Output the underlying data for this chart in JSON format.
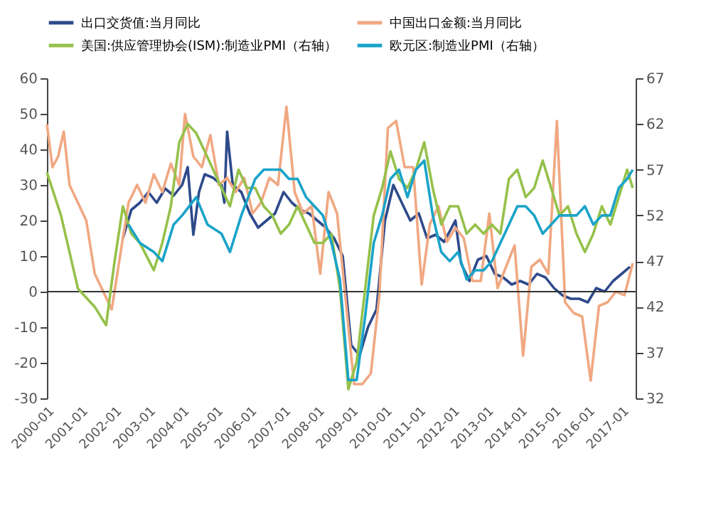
{
  "chart_data": {
    "type": "line",
    "xlim": [
      "2000-01",
      "2017-06"
    ],
    "xticks": [
      "2000-01",
      "2001-01",
      "2002-01",
      "2003-01",
      "2004-01",
      "2005-01",
      "2006-01",
      "2007-01",
      "2008-01",
      "2009-01",
      "2010-01",
      "2011-01",
      "2012-01",
      "2013-01",
      "2014-01",
      "2015-01",
      "2016-01",
      "2017-01"
    ],
    "ylim": [
      -30,
      60
    ],
    "yticks": [
      -30,
      -20,
      -10,
      0,
      10,
      20,
      30,
      40,
      50,
      60
    ],
    "y2lim": [
      32,
      67
    ],
    "y2ticks": [
      32,
      37,
      42,
      47,
      52,
      57,
      62,
      67
    ],
    "legend": "top",
    "ref_lines": [
      {
        "axis": "y",
        "value": 0
      }
    ],
    "series": [
      {
        "name": "出口交货值:当月同比",
        "color": "#2e4a8b",
        "x": [
          "2002-04",
          "2002-07",
          "2002-10",
          "2003-01",
          "2003-04",
          "2003-07",
          "2003-10",
          "2004-01",
          "2004-03",
          "2004-05",
          "2004-07",
          "2004-09",
          "2004-12",
          "2005-03",
          "2005-04",
          "2005-05",
          "2005-07",
          "2005-10",
          "2006-01",
          "2006-04",
          "2006-07",
          "2006-10",
          "2007-01",
          "2007-04",
          "2007-07",
          "2007-10",
          "2008-01",
          "2008-04",
          "2008-07",
          "2008-10",
          "2009-01",
          "2009-04",
          "2009-07",
          "2009-10",
          "2010-01",
          "2010-04",
          "2010-07",
          "2010-10",
          "2011-01",
          "2011-04",
          "2011-07",
          "2011-10",
          "2012-02",
          "2012-04",
          "2012-07",
          "2012-10",
          "2013-01",
          "2013-04",
          "2013-07",
          "2013-10",
          "2014-01",
          "2014-04",
          "2014-07",
          "2014-10",
          "2015-01",
          "2015-04",
          "2015-07",
          "2015-10",
          "2016-01",
          "2016-04",
          "2016-07",
          "2016-10",
          "2017-01",
          "2017-04"
        ],
        "values": [
          15,
          23,
          25,
          28,
          25,
          29,
          27,
          30,
          35,
          16,
          28,
          33,
          32,
          30,
          25,
          45,
          30,
          28,
          22,
          18,
          20,
          22,
          28,
          25,
          23,
          22,
          20,
          18,
          15,
          10,
          -15,
          -18,
          -10,
          -5,
          20,
          30,
          25,
          20,
          22,
          15,
          16,
          14,
          20,
          8,
          3,
          9,
          10,
          5,
          4,
          2,
          3,
          2,
          5,
          4,
          1,
          -1,
          -2,
          -2,
          -3,
          1,
          0,
          3,
          5,
          7
        ]
      },
      {
        "name": "中国出口金额:当月同比",
        "color": "#f0a882",
        "x": [
          "2000-01",
          "2000-03",
          "2000-05",
          "2000-07",
          "2000-09",
          "2000-12",
          "2001-03",
          "2001-06",
          "2001-09",
          "2001-12",
          "2002-03",
          "2002-06",
          "2002-09",
          "2002-12",
          "2003-03",
          "2003-06",
          "2003-09",
          "2003-12",
          "2004-02",
          "2004-05",
          "2004-08",
          "2004-11",
          "2005-02",
          "2005-05",
          "2005-08",
          "2005-11",
          "2006-02",
          "2006-05",
          "2006-08",
          "2006-11",
          "2007-02",
          "2007-05",
          "2007-08",
          "2007-11",
          "2008-02",
          "2008-05",
          "2008-08",
          "2008-11",
          "2009-02",
          "2009-05",
          "2009-08",
          "2009-11",
          "2010-02",
          "2010-05",
          "2010-08",
          "2010-11",
          "2011-02",
          "2011-05",
          "2011-08",
          "2011-11",
          "2012-02",
          "2012-05",
          "2012-08",
          "2012-11",
          "2013-02",
          "2013-05",
          "2013-08",
          "2013-11",
          "2014-02",
          "2014-05",
          "2014-08",
          "2014-11",
          "2015-02",
          "2015-05",
          "2015-08",
          "2015-11",
          "2016-02",
          "2016-05",
          "2016-08",
          "2016-11",
          "2017-02",
          "2017-05"
        ],
        "values": [
          47,
          35,
          38,
          45,
          30,
          25,
          20,
          5,
          0,
          -5,
          10,
          25,
          30,
          25,
          33,
          28,
          36,
          30,
          50,
          38,
          35,
          44,
          30,
          32,
          28,
          32,
          22,
          25,
          32,
          30,
          52,
          28,
          22,
          24,
          5,
          28,
          22,
          -2,
          -26,
          -26,
          -23,
          -1,
          46,
          48,
          35,
          35,
          2,
          19,
          24,
          14,
          18,
          15,
          3,
          3,
          22,
          1,
          7,
          13,
          -18,
          7,
          9,
          5,
          48,
          -3,
          -6,
          -7,
          -25,
          -4,
          -3,
          0,
          -1,
          8
        ]
      },
      {
        "name": "美国:供应管理协会(ISM):制造业PMI（右轴）",
        "color": "#95c14a",
        "axis": "y2",
        "x": [
          "2000-01",
          "2000-06",
          "2000-12",
          "2001-06",
          "2001-10",
          "2002-01",
          "2002-04",
          "2002-07",
          "2002-10",
          "2003-03",
          "2003-06",
          "2003-09",
          "2003-12",
          "2004-03",
          "2004-06",
          "2004-09",
          "2004-12",
          "2005-03",
          "2005-06",
          "2005-09",
          "2005-12",
          "2006-03",
          "2006-06",
          "2006-09",
          "2006-12",
          "2007-03",
          "2007-06",
          "2007-09",
          "2007-12",
          "2008-03",
          "2008-06",
          "2008-09",
          "2008-12",
          "2009-03",
          "2009-06",
          "2009-09",
          "2009-12",
          "2010-03",
          "2010-06",
          "2010-09",
          "2010-12",
          "2011-03",
          "2011-06",
          "2011-09",
          "2011-12",
          "2012-03",
          "2012-06",
          "2012-09",
          "2012-12",
          "2013-03",
          "2013-06",
          "2013-09",
          "2013-12",
          "2014-03",
          "2014-06",
          "2014-09",
          "2014-12",
          "2015-03",
          "2015-06",
          "2015-09",
          "2015-12",
          "2016-03",
          "2016-06",
          "2016-09",
          "2016-12",
          "2017-03",
          "2017-05"
        ],
        "values": [
          56.7,
          52,
          44,
          42,
          40,
          47,
          53,
          50,
          49,
          46,
          49,
          53,
          60,
          62,
          61,
          59,
          57,
          55,
          53,
          57,
          55,
          55,
          53,
          52,
          50,
          51,
          53,
          51,
          49,
          49,
          50,
          44,
          33,
          36,
          44,
          52,
          55,
          59,
          56,
          55,
          57,
          60,
          55,
          51,
          53,
          53,
          50,
          51,
          50,
          51,
          50,
          56,
          57,
          54,
          55,
          58,
          55,
          52,
          53,
          50,
          48,
          50,
          53,
          51,
          54,
          57,
          55
        ]
      },
      {
        "name": "欧元区:制造业PMI（右轴）",
        "color": "#1aa3c9",
        "axis": "y2",
        "x": [
          "2002-06",
          "2002-10",
          "2003-03",
          "2003-06",
          "2003-10",
          "2004-01",
          "2004-06",
          "2004-10",
          "2005-03",
          "2005-06",
          "2005-10",
          "2006-03",
          "2006-06",
          "2006-09",
          "2006-12",
          "2007-03",
          "2007-06",
          "2007-09",
          "2007-12",
          "2008-03",
          "2008-06",
          "2008-09",
          "2008-12",
          "2009-03",
          "2009-06",
          "2009-09",
          "2009-12",
          "2010-03",
          "2010-06",
          "2010-09",
          "2010-12",
          "2011-03",
          "2011-06",
          "2011-09",
          "2011-12",
          "2012-03",
          "2012-06",
          "2012-09",
          "2012-12",
          "2013-03",
          "2013-06",
          "2013-09",
          "2013-12",
          "2014-03",
          "2014-06",
          "2014-09",
          "2014-12",
          "2015-03",
          "2015-06",
          "2015-09",
          "2015-12",
          "2016-03",
          "2016-06",
          "2016-09",
          "2016-12",
          "2017-03",
          "2017-05"
        ],
        "values": [
          51,
          49,
          48,
          47,
          51,
          52,
          54,
          51,
          50,
          48,
          52,
          56,
          57,
          57,
          57,
          56,
          56,
          54,
          53,
          52,
          49,
          45,
          34,
          34,
          41,
          49,
          52,
          56,
          57,
          54,
          57,
          58,
          52,
          48,
          47,
          48,
          45,
          46,
          46,
          47,
          49,
          51,
          53,
          53,
          52,
          50,
          51,
          52,
          52,
          52,
          53,
          51,
          52,
          52,
          55,
          56,
          57
        ]
      }
    ]
  }
}
